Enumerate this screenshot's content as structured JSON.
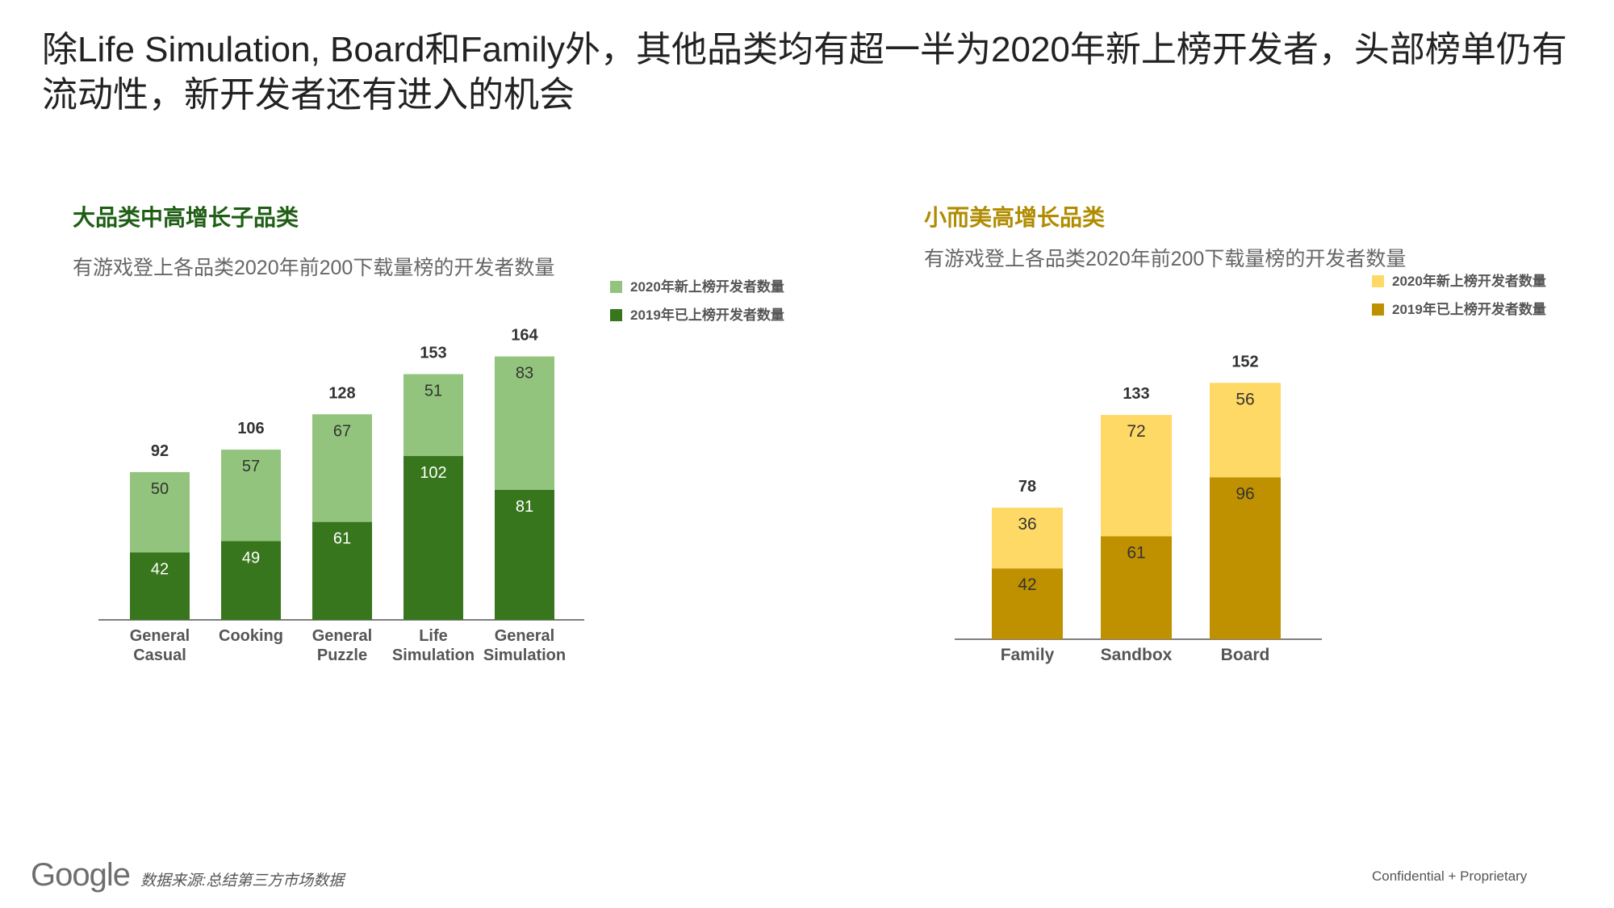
{
  "headline": "除Life Simulation, Board和Family外，其他品类均有超一半为2020年新上榜开发者，头部榜单仍有流动性，新开发者还有进入的机会",
  "footer": {
    "logo": "Google",
    "source": "数据来源:总结第三方市场数据",
    "confidential": "Confidential + Proprietary"
  },
  "colors": {
    "left_new": "#93c47d",
    "left_old": "#38761d",
    "right_new": "#ffd966",
    "right_old": "#bf9000"
  },
  "chart_data": [
    {
      "type": "bar",
      "stacked": true,
      "title": "大品类中高增长子品类",
      "subtitle": "有游戏登上各品类2020年前200下载量榜的开发者数量",
      "categories": [
        [
          "General",
          "Casual"
        ],
        [
          "Cooking"
        ],
        [
          "General",
          "Puzzle"
        ],
        [
          "Life",
          "Simulation"
        ],
        [
          "General",
          "Simulation"
        ]
      ],
      "series": [
        {
          "name": "2019年已上榜开发者数量",
          "values": [
            42,
            49,
            61,
            102,
            81
          ],
          "color": "#38761d"
        },
        {
          "name": "2020年新上榜开发者数量",
          "values": [
            50,
            57,
            67,
            51,
            83
          ],
          "color": "#93c47d"
        }
      ],
      "totals": [
        92,
        106,
        128,
        153,
        164
      ],
      "legend": [
        {
          "name": "2020年新上榜开发者数量",
          "color": "#93c47d"
        },
        {
          "name": "2019年已上榜开发者数量",
          "color": "#38761d"
        }
      ],
      "legend_position": "top-right",
      "grid": false,
      "ylim": [
        0,
        170
      ]
    },
    {
      "type": "bar",
      "stacked": true,
      "title": "小而美高增长品类",
      "subtitle": "有游戏登上各品类2020年前200下载量榜的开发者数量",
      "categories": [
        [
          "Family"
        ],
        [
          "Sandbox"
        ],
        [
          "Board"
        ]
      ],
      "series": [
        {
          "name": "2019年已上榜开发者数量",
          "values": [
            42,
            61,
            96
          ],
          "color": "#bf9000"
        },
        {
          "name": "2020年新上榜开发者数量",
          "values": [
            36,
            72,
            56
          ],
          "color": "#ffd966"
        }
      ],
      "totals": [
        78,
        133,
        152
      ],
      "legend": [
        {
          "name": "2020年新上榜开发者数量",
          "color": "#ffd966"
        },
        {
          "name": "2019年已上榜开发者数量",
          "color": "#bf9000"
        }
      ],
      "legend_position": "top-right",
      "grid": false,
      "ylim": [
        0,
        160
      ]
    }
  ]
}
